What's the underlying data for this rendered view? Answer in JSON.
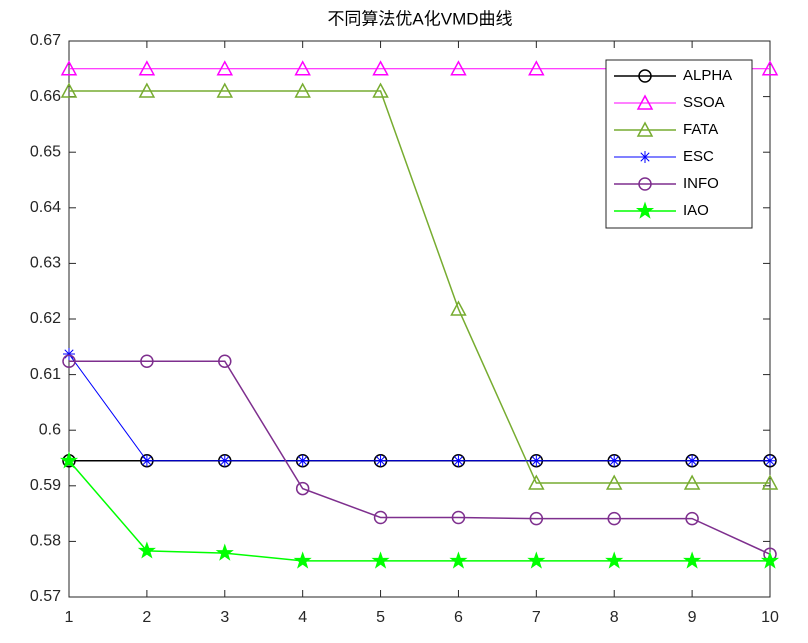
{
  "chart_data": {
    "type": "line",
    "title": "不同算法优A化VMD曲线",
    "x": [
      1,
      2,
      3,
      4,
      5,
      6,
      7,
      8,
      9,
      10
    ],
    "xlim": [
      1,
      10
    ],
    "xticks": [
      1,
      2,
      3,
      4,
      5,
      6,
      7,
      8,
      9,
      10
    ],
    "ylim": [
      0.57,
      0.67
    ],
    "yticks": [
      0.57,
      0.58,
      0.59,
      0.6,
      0.61,
      0.62,
      0.63,
      0.64,
      0.65,
      0.66,
      0.67
    ],
    "grid": false,
    "legend": "northeast",
    "series": [
      {
        "name": "ALPHA",
        "color": "#000000",
        "marker": "circle",
        "line_width": 1.5,
        "values": [
          0.5945,
          0.5945,
          0.5945,
          0.5945,
          0.5945,
          0.5945,
          0.5945,
          0.5945,
          0.5945,
          0.5945
        ]
      },
      {
        "name": "SSOA",
        "color": "#ff00ff",
        "marker": "triangle",
        "line_width": 1,
        "values": [
          0.665,
          0.665,
          0.665,
          0.665,
          0.665,
          0.665,
          0.665,
          0.665,
          0.665,
          0.665
        ]
      },
      {
        "name": "FATA",
        "color": "#77ac30",
        "marker": "triangle",
        "line_width": 1.5,
        "values": [
          0.661,
          0.661,
          0.661,
          0.661,
          0.661,
          0.6218,
          0.5905,
          0.5905,
          0.5905,
          0.5905
        ]
      },
      {
        "name": "ESC",
        "color": "#0000ff",
        "marker": "asterisk",
        "line_width": 1,
        "values": [
          0.6137,
          0.5945,
          0.5945,
          0.5945,
          0.5945,
          0.5945,
          0.5945,
          0.5945,
          0.5945,
          0.5945
        ]
      },
      {
        "name": "INFO",
        "color": "#7e2f8e",
        "marker": "circle",
        "line_width": 1.5,
        "values": [
          0.6124,
          0.6124,
          0.6124,
          0.5895,
          0.5843,
          0.5843,
          0.5841,
          0.5841,
          0.5841,
          0.5777
        ]
      },
      {
        "name": "IAO",
        "color": "#00ff00",
        "marker": "star",
        "line_width": 1.5,
        "values": [
          0.5945,
          0.5783,
          0.5779,
          0.5765,
          0.5765,
          0.5765,
          0.5765,
          0.5765,
          0.5765,
          0.5765
        ]
      }
    ]
  }
}
